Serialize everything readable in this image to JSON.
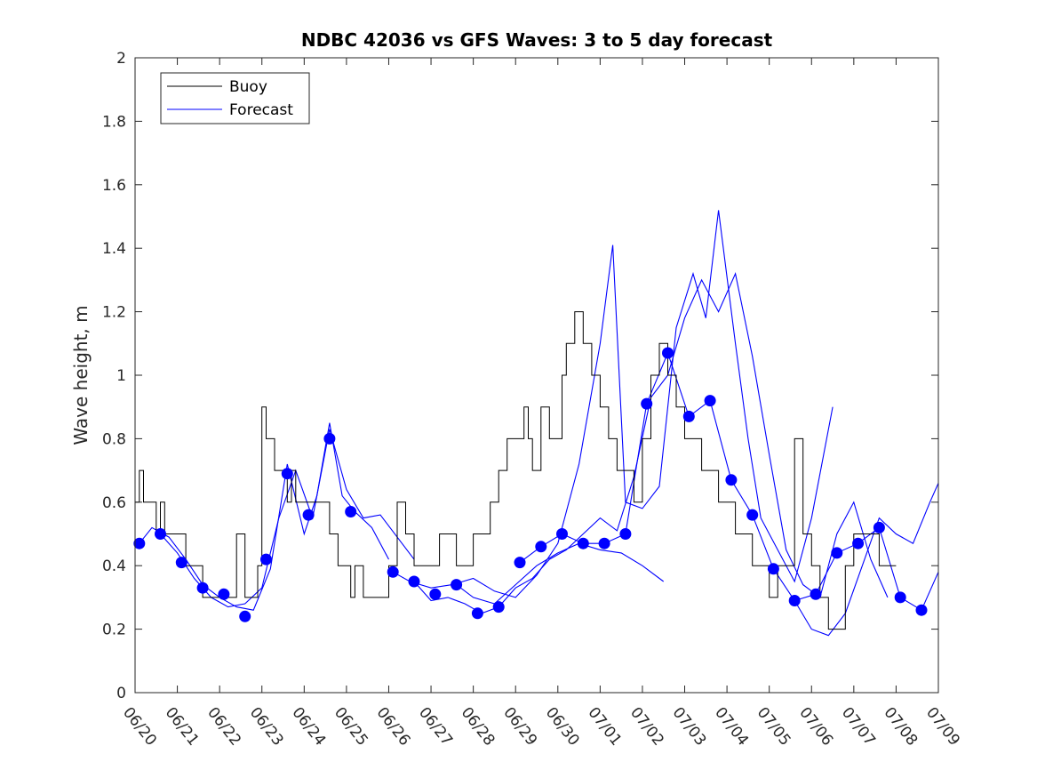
{
  "chart_data": {
    "type": "line",
    "title": "NDBC 42036 vs GFS Waves: 3 to 5 day forecast",
    "xlabel": "",
    "ylabel": "Wave height, m",
    "ylim": [
      0,
      2
    ],
    "xlim": [
      "06/20",
      "07/09"
    ],
    "yticks": [
      "0",
      "0.2",
      "0.4",
      "0.6",
      "0.8",
      "1",
      "1.2",
      "1.4",
      "1.6",
      "1.8",
      "2"
    ],
    "xtick_labels": [
      "06/20",
      "06/21",
      "06/22",
      "06/23",
      "06/24",
      "06/25",
      "06/26",
      "06/27",
      "06/28",
      "06/29",
      "06/30",
      "07/01",
      "07/02",
      "07/03",
      "07/04",
      "07/05",
      "07/06",
      "07/07",
      "07/08",
      "07/09"
    ],
    "grid": false,
    "legend": {
      "position": "top-left",
      "entries": [
        "Buoy",
        "Forecast"
      ]
    },
    "colors": {
      "buoy": "#000000",
      "forecast": "#0000ff",
      "markers": "#0000ff"
    },
    "x_units": "days since 06/20",
    "buoy": {
      "x": [
        0,
        0.1,
        0.2,
        0.3,
        0.4,
        0.5,
        0.6,
        0.7,
        0.8,
        0.9,
        1.0,
        1.2,
        1.4,
        1.6,
        1.8,
        2.0,
        2.2,
        2.4,
        2.6,
        2.8,
        2.9,
        3.0,
        3.1,
        3.2,
        3.3,
        3.4,
        3.5,
        3.6,
        3.7,
        3.8,
        3.9,
        4.0,
        4.2,
        4.4,
        4.6,
        4.8,
        5.0,
        5.1,
        5.2,
        5.4,
        5.6,
        5.8,
        6.0,
        6.2,
        6.4,
        6.6,
        6.8,
        7.0,
        7.2,
        7.4,
        7.6,
        7.8,
        8.0,
        8.2,
        8.4,
        8.6,
        8.8,
        9.0,
        9.2,
        9.3,
        9.4,
        9.6,
        9.8,
        10.0,
        10.1,
        10.2,
        10.4,
        10.6,
        10.8,
        11.0,
        11.2,
        11.4,
        11.6,
        11.8,
        12.0,
        12.2,
        12.4,
        12.6,
        12.8,
        13.0,
        13.2,
        13.4,
        13.6,
        13.8,
        14.0,
        14.2,
        14.4,
        14.6,
        14.8,
        15.0,
        15.2,
        15.4,
        15.6,
        15.8,
        16.0,
        16.2,
        16.4,
        16.6,
        16.8,
        17.0,
        17.2,
        17.4,
        17.6,
        17.8,
        18.0
      ],
      "y": [
        0.6,
        0.7,
        0.6,
        0.6,
        0.6,
        0.5,
        0.6,
        0.5,
        0.5,
        0.5,
        0.5,
        0.4,
        0.4,
        0.3,
        0.3,
        0.3,
        0.3,
        0.5,
        0.3,
        0.3,
        0.4,
        0.9,
        0.8,
        0.8,
        0.7,
        0.7,
        0.7,
        0.6,
        0.7,
        0.6,
        0.6,
        0.6,
        0.6,
        0.6,
        0.5,
        0.4,
        0.4,
        0.3,
        0.4,
        0.3,
        0.3,
        0.3,
        0.4,
        0.6,
        0.5,
        0.4,
        0.4,
        0.4,
        0.5,
        0.5,
        0.4,
        0.4,
        0.5,
        0.5,
        0.6,
        0.7,
        0.8,
        0.8,
        0.9,
        0.8,
        0.7,
        0.9,
        0.8,
        0.8,
        1.0,
        1.1,
        1.2,
        1.1,
        1.0,
        0.9,
        0.8,
        0.7,
        0.7,
        0.6,
        0.8,
        1.0,
        1.1,
        1.0,
        0.9,
        0.8,
        0.8,
        0.7,
        0.7,
        0.6,
        0.6,
        0.5,
        0.5,
        0.4,
        0.4,
        0.3,
        0.4,
        0.4,
        0.8,
        0.5,
        0.4,
        0.3,
        0.2,
        0.2,
        0.4,
        0.5,
        0.5,
        0.5,
        0.4,
        0.4,
        0.4
      ]
    },
    "markers": {
      "x": [
        0.1,
        0.6,
        1.1,
        1.6,
        2.1,
        2.6,
        3.1,
        3.6,
        4.1,
        4.6,
        5.1,
        6.1,
        6.6,
        7.1,
        7.6,
        8.1,
        8.6,
        9.1,
        9.6,
        10.1,
        10.6,
        11.1,
        11.6,
        12.1,
        12.6,
        13.1,
        13.6,
        14.1,
        14.6,
        15.1,
        15.6,
        16.1,
        16.6,
        17.1,
        17.6,
        18.1,
        18.6
      ],
      "y": [
        0.47,
        0.5,
        0.41,
        0.33,
        0.31,
        0.24,
        0.42,
        0.69,
        0.56,
        0.8,
        0.57,
        0.38,
        0.35,
        0.31,
        0.34,
        0.25,
        0.27,
        0.41,
        0.46,
        0.5,
        0.47,
        0.47,
        0.5,
        0.91,
        1.07,
        0.87,
        0.92,
        0.67,
        0.56,
        0.39,
        0.29,
        0.31,
        0.44,
        0.47,
        0.52,
        0.3,
        0.26
      ]
    },
    "series": [
      {
        "x": [
          0.1,
          0.4,
          0.8,
          1.2,
          1.6,
          2.0,
          2.4,
          2.8,
          3.2,
          3.6,
          4.0,
          4.3,
          4.6,
          4.9,
          5.2,
          5.6,
          6.0
        ],
        "y": [
          0.47,
          0.52,
          0.49,
          0.42,
          0.34,
          0.3,
          0.27,
          0.26,
          0.39,
          0.72,
          0.5,
          0.62,
          0.85,
          0.62,
          0.57,
          0.52,
          0.42
        ]
      },
      {
        "x": [
          0.6,
          1.0,
          1.4,
          1.8,
          2.2,
          2.6,
          3.0,
          3.4,
          3.8,
          4.2,
          4.6,
          5.0,
          5.4,
          5.8,
          6.2,
          6.6
        ],
        "y": [
          0.5,
          0.44,
          0.36,
          0.3,
          0.27,
          0.28,
          0.33,
          0.55,
          0.7,
          0.55,
          0.83,
          0.64,
          0.55,
          0.56,
          0.49,
          0.42
        ]
      },
      {
        "x": [
          6.1,
          6.5,
          7.0,
          7.5,
          8.0,
          8.5,
          9.0,
          9.5,
          10.0,
          10.5,
          11.0,
          11.3,
          11.6,
          12.0,
          12.4,
          12.8,
          13.2,
          13.5,
          13.8,
          14.2,
          14.5,
          14.8,
          15.2,
          15.6,
          16.0,
          16.5
        ],
        "y": [
          0.38,
          0.35,
          0.33,
          0.34,
          0.36,
          0.32,
          0.3,
          0.37,
          0.47,
          0.72,
          1.1,
          1.41,
          0.6,
          0.58,
          0.65,
          1.15,
          1.32,
          1.18,
          1.52,
          1.1,
          0.8,
          0.55,
          0.45,
          0.35,
          0.55,
          0.9
        ]
      },
      {
        "x": [
          6.6,
          7.0,
          7.4,
          7.8,
          8.2,
          8.6,
          9.0,
          9.4,
          9.8,
          10.2,
          10.6,
          11.0,
          11.4,
          11.8,
          12.2,
          12.6,
          13.0,
          13.4,
          13.8,
          14.2,
          14.6,
          15.0,
          15.4,
          15.8,
          16.2,
          16.6,
          17.0,
          17.4,
          17.8
        ],
        "y": [
          0.35,
          0.29,
          0.3,
          0.28,
          0.25,
          0.27,
          0.33,
          0.36,
          0.42,
          0.45,
          0.5,
          0.55,
          0.51,
          0.68,
          0.93,
          1.0,
          1.18,
          1.3,
          1.2,
          1.32,
          1.06,
          0.75,
          0.45,
          0.34,
          0.3,
          0.5,
          0.6,
          0.42,
          0.3
        ]
      },
      {
        "x": [
          9.1,
          9.6,
          10.1,
          10.6,
          11.1,
          11.6,
          12.1,
          12.6,
          13.1,
          13.6,
          14.1,
          14.6,
          15.1,
          15.6,
          16.1,
          16.6,
          17.1,
          17.6,
          18.1,
          18.6,
          19.0
        ],
        "y": [
          0.41,
          0.46,
          0.5,
          0.47,
          0.47,
          0.5,
          0.91,
          1.07,
          0.87,
          0.92,
          0.67,
          0.56,
          0.39,
          0.29,
          0.31,
          0.44,
          0.47,
          0.52,
          0.3,
          0.26,
          0.38
        ]
      },
      {
        "x": [
          7.6,
          8.0,
          8.5,
          9.0,
          9.5,
          10.0,
          10.5,
          11.0,
          11.5,
          12.0,
          12.5
        ],
        "y": [
          0.34,
          0.3,
          0.28,
          0.34,
          0.4,
          0.44,
          0.47,
          0.45,
          0.44,
          0.4,
          0.35
        ]
      },
      {
        "x": [
          15.6,
          16.0,
          16.4,
          16.8,
          17.2,
          17.6,
          18.0,
          18.4,
          18.8,
          19.0
        ],
        "y": [
          0.29,
          0.2,
          0.18,
          0.25,
          0.4,
          0.55,
          0.5,
          0.47,
          0.6,
          0.66
        ]
      }
    ]
  }
}
